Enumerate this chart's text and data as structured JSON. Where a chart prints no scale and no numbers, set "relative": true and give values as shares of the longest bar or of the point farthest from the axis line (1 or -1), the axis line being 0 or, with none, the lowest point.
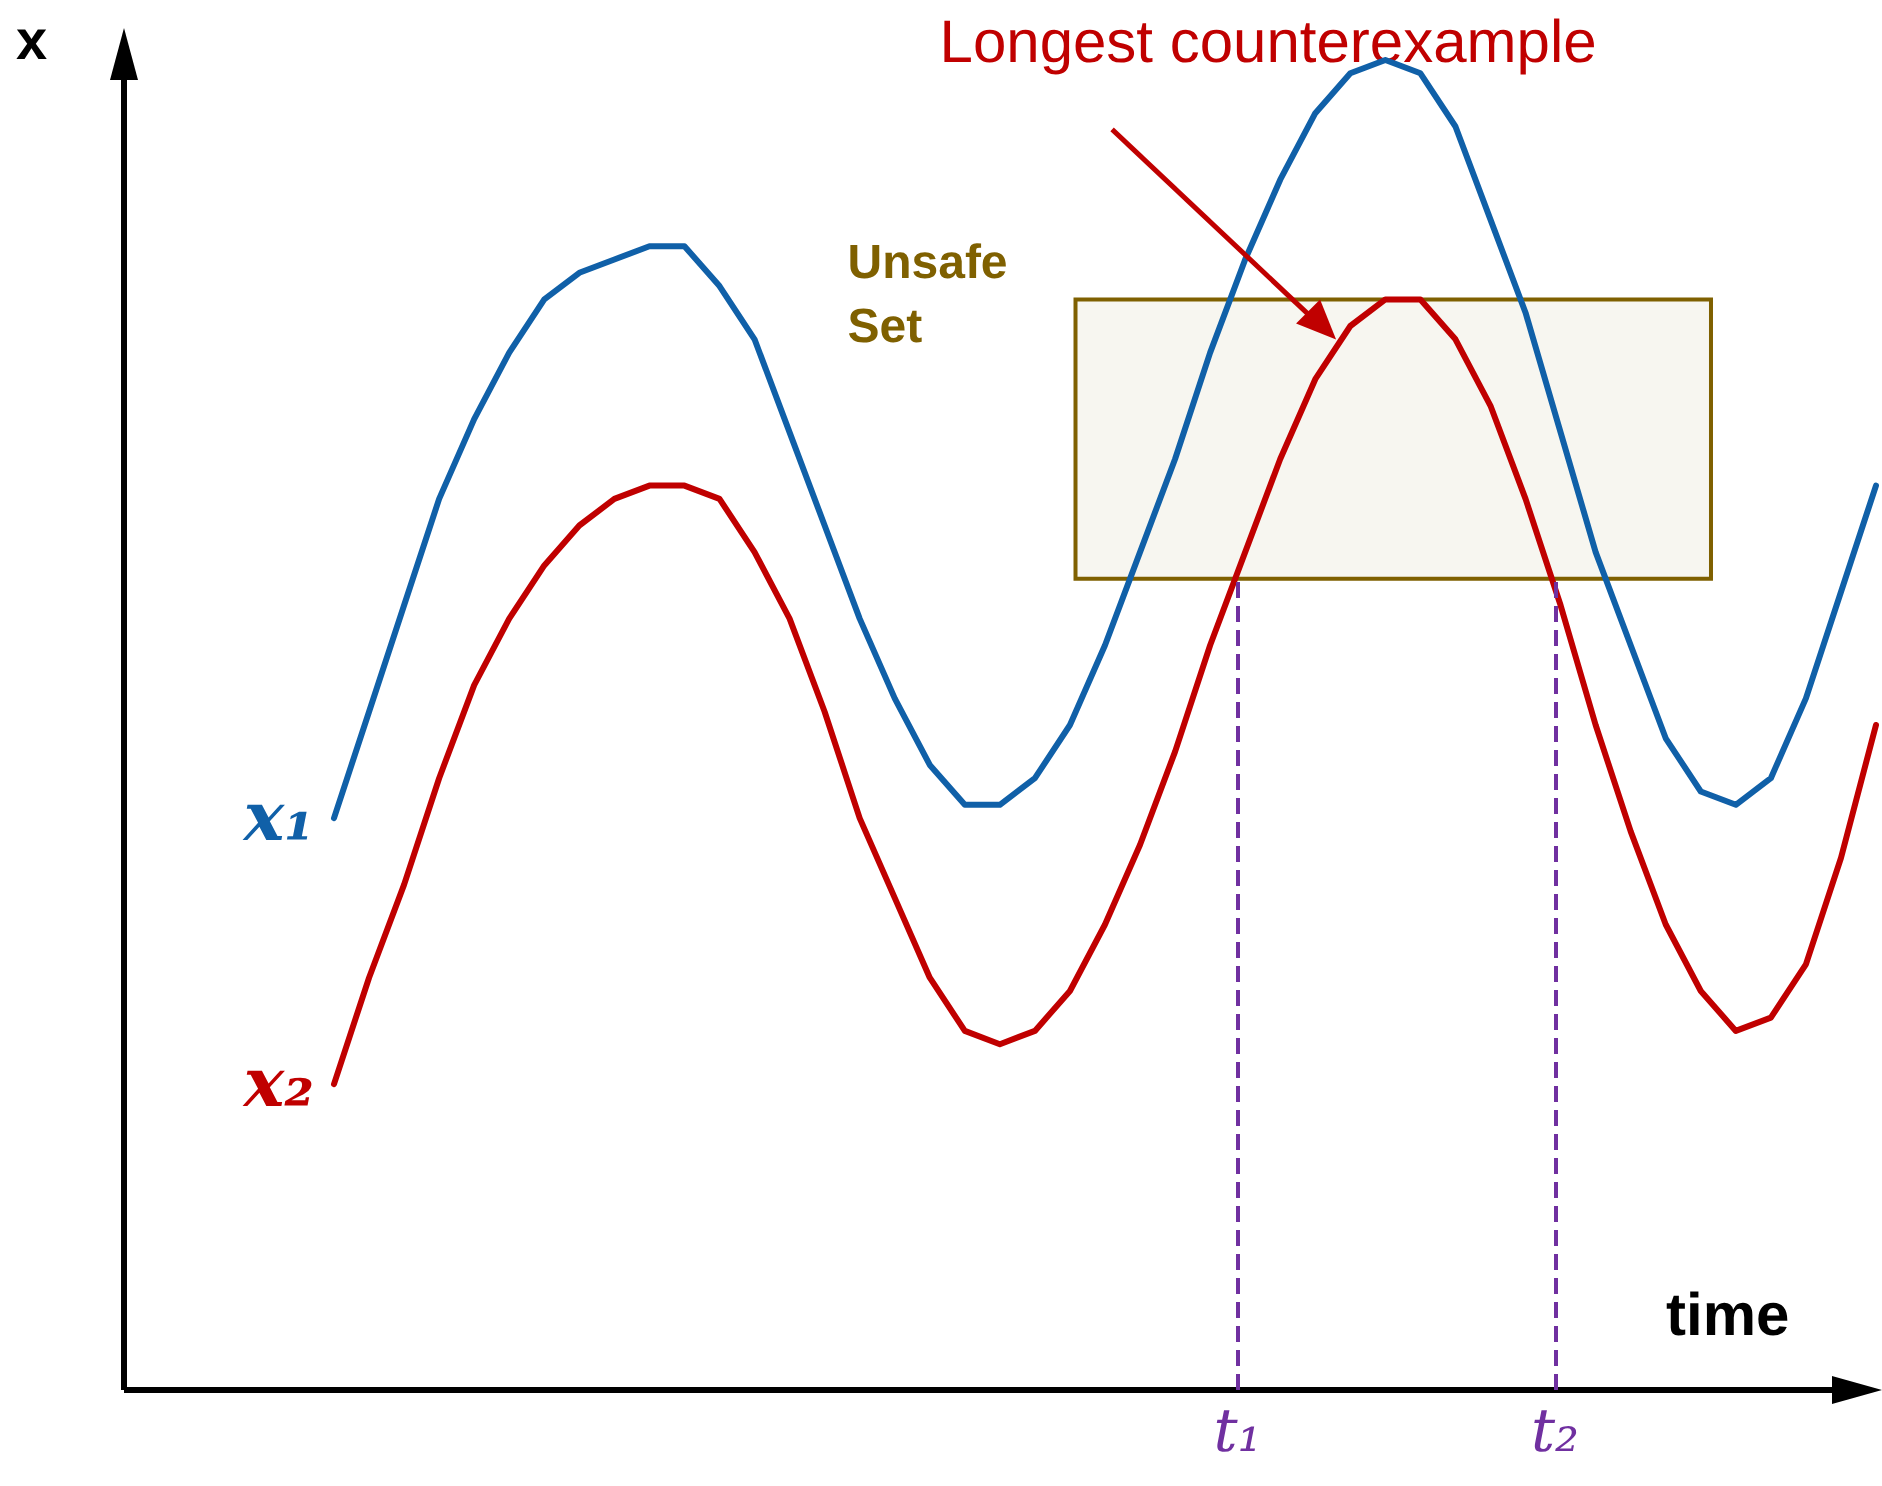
{
  "chart_data": {
    "type": "line",
    "relative": true,
    "xlabel": "time",
    "ylabel": "x",
    "grid": false,
    "legend": false,
    "marker": "none",
    "categories": [
      null,
      null,
      null,
      null,
      null,
      null,
      null,
      null,
      null,
      null,
      null,
      null,
      null,
      null,
      null,
      null,
      null,
      null,
      null,
      null,
      null,
      null,
      null,
      null,
      null,
      null,
      null,
      null,
      null,
      null,
      null,
      null,
      null,
      null,
      null,
      null,
      null,
      null,
      null,
      null,
      null,
      null,
      null,
      null,
      null
    ],
    "series": [
      {
        "name": "x₁",
        "color": "#1060a8",
        "values": [
          0.43,
          0.51,
          0.59,
          0.67,
          0.73,
          0.78,
          0.82,
          0.84,
          0.85,
          0.86,
          0.86,
          0.83,
          0.79,
          0.72,
          0.65,
          0.58,
          0.52,
          0.47,
          0.44,
          0.44,
          0.46,
          0.5,
          0.56,
          0.63,
          0.7,
          0.78,
          0.85,
          0.91,
          0.96,
          0.99,
          1.0,
          0.99,
          0.95,
          0.88,
          0.81,
          0.72,
          0.63,
          0.56,
          0.49,
          0.45,
          0.44,
          0.46,
          0.52,
          0.6,
          0.68
        ]
      },
      {
        "name": "x₂",
        "color": "#c00000",
        "values": [
          0.23,
          0.31,
          0.38,
          0.46,
          0.53,
          0.58,
          0.62,
          0.65,
          0.67,
          0.68,
          0.68,
          0.67,
          0.63,
          0.58,
          0.51,
          0.43,
          0.37,
          0.31,
          0.27,
          0.26,
          0.27,
          0.3,
          0.35,
          0.41,
          0.48,
          0.56,
          0.63,
          0.7,
          0.76,
          0.8,
          0.82,
          0.82,
          0.79,
          0.74,
          0.67,
          0.59,
          0.5,
          0.42,
          0.35,
          0.3,
          0.27,
          0.28,
          0.32,
          0.4,
          0.5
        ]
      }
    ],
    "bands": [
      {
        "axis": "y",
        "from": 0.61,
        "to": 0.82,
        "label": "Unsafe Set",
        "color": "#7f6000"
      }
    ],
    "annotations": [
      "Longest counterexample",
      "t₁",
      "t₂"
    ]
  }
}
